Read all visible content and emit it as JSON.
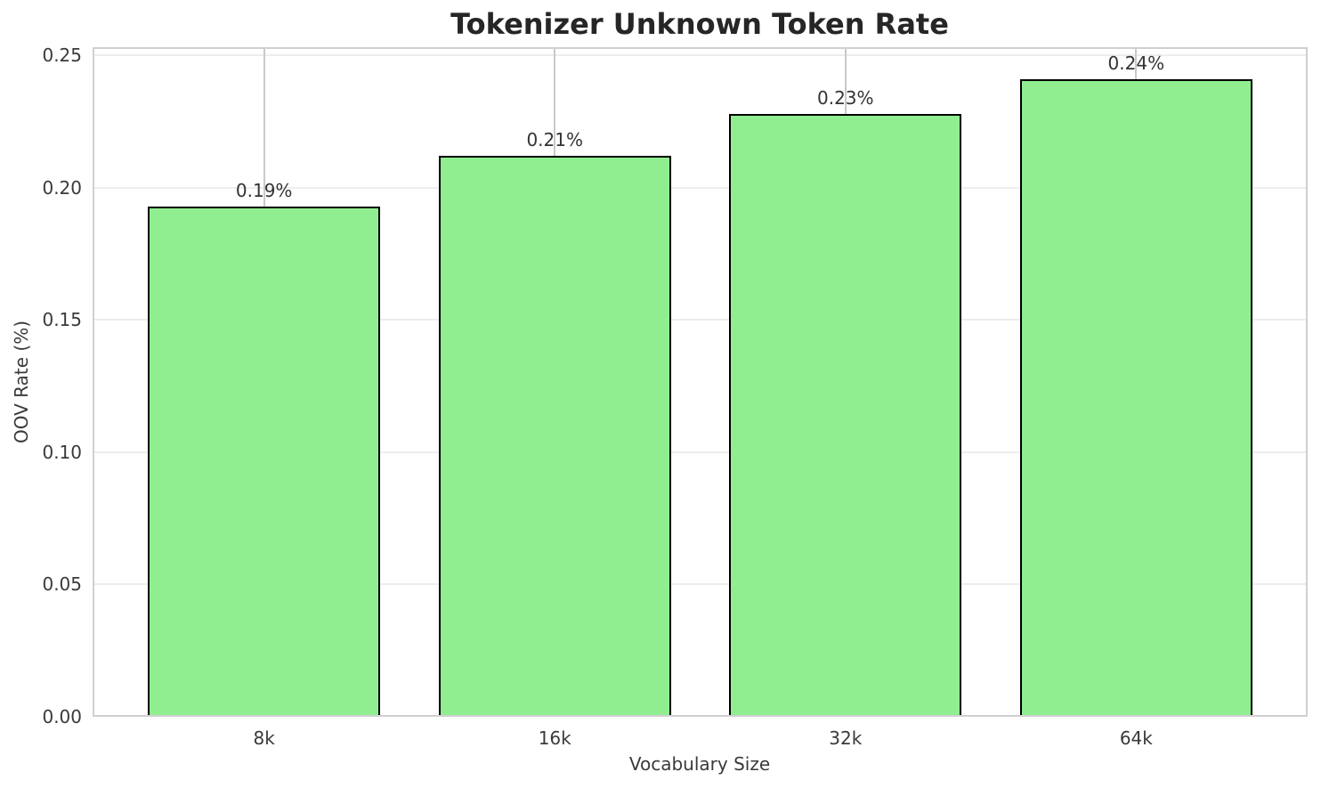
{
  "chart_data": {
    "type": "bar",
    "title": "Tokenizer Unknown Token Rate",
    "xlabel": "Vocabulary Size",
    "ylabel": "OOV Rate (%)",
    "categories": [
      "8k",
      "16k",
      "32k",
      "64k"
    ],
    "values": [
      0.193,
      0.212,
      0.228,
      0.241
    ],
    "bar_labels": [
      "0.19%",
      "0.21%",
      "0.23%",
      "0.24%"
    ],
    "yticks": [
      0,
      0.05,
      0.1,
      0.15,
      0.2,
      0.25
    ],
    "ytick_labels": [
      "0.00",
      "0.05",
      "0.10",
      "0.15",
      "0.20",
      "0.25"
    ],
    "ylim": [
      0,
      0.2531
    ],
    "grid": true,
    "legend_position": "none",
    "colors": {
      "bar_fill": "#90EE90",
      "bar_edge": "#000000",
      "grid_x": "#c9c9c9",
      "grid_y": "#ededed",
      "spine": "#d0d0d0",
      "tick_text": "#3a3a3a",
      "title_text": "#262626"
    }
  }
}
